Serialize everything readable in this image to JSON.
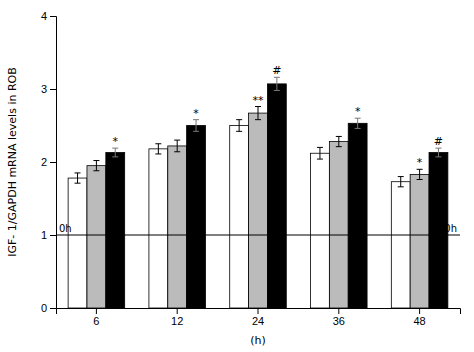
{
  "chart_data": {
    "type": "bar",
    "categories": [
      "6",
      "12",
      "24",
      "36",
      "48"
    ],
    "xlabel": "(h)",
    "ylabel": "IGF- 1/GAPDH mRNA levels in ROB",
    "ylim": [
      0,
      4
    ],
    "yticks": [
      0,
      1,
      2,
      3,
      4
    ],
    "series": [
      {
        "color": "white",
        "values": [
          1.78,
          2.18,
          2.5,
          2.12,
          1.73
        ],
        "errors": [
          0.07,
          0.07,
          0.08,
          0.08,
          0.07
        ]
      },
      {
        "color": "#bbbbbb",
        "values": [
          1.95,
          2.22,
          2.67,
          2.28,
          1.83
        ],
        "errors": [
          0.07,
          0.08,
          0.09,
          0.07,
          0.07
        ],
        "annotations": [
          null,
          null,
          "**",
          null,
          "*"
        ]
      },
      {
        "color": "black",
        "values": [
          2.13,
          2.5,
          3.07,
          2.53,
          2.13
        ],
        "errors": [
          0.06,
          0.08,
          0.09,
          0.07,
          0.06
        ],
        "annotations": [
          "*",
          "*",
          "#",
          "*",
          "#"
        ]
      }
    ],
    "reference_line": {
      "value": 1.0,
      "labels": [
        "0h",
        "0h"
      ]
    }
  }
}
